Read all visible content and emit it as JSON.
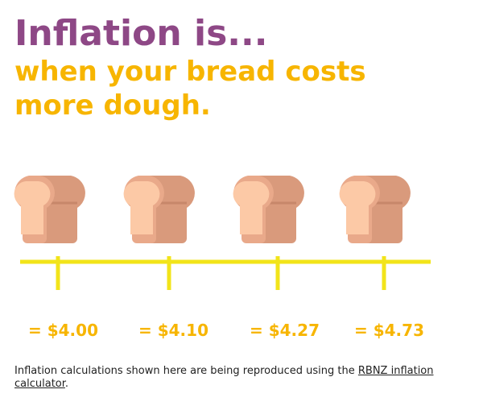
{
  "header": {
    "title": "Inflation is...",
    "subtitle_lines": [
      "when your bread costs",
      "more dough."
    ]
  },
  "prices": [
    "= $4.00",
    "= $4.10",
    "= $4.27",
    "= $4.73"
  ],
  "footnote": {
    "text": "Inflation calculations shown here are being reproduced using the",
    "link": "RBNZ inflation calculator",
    "end": "."
  }
}
